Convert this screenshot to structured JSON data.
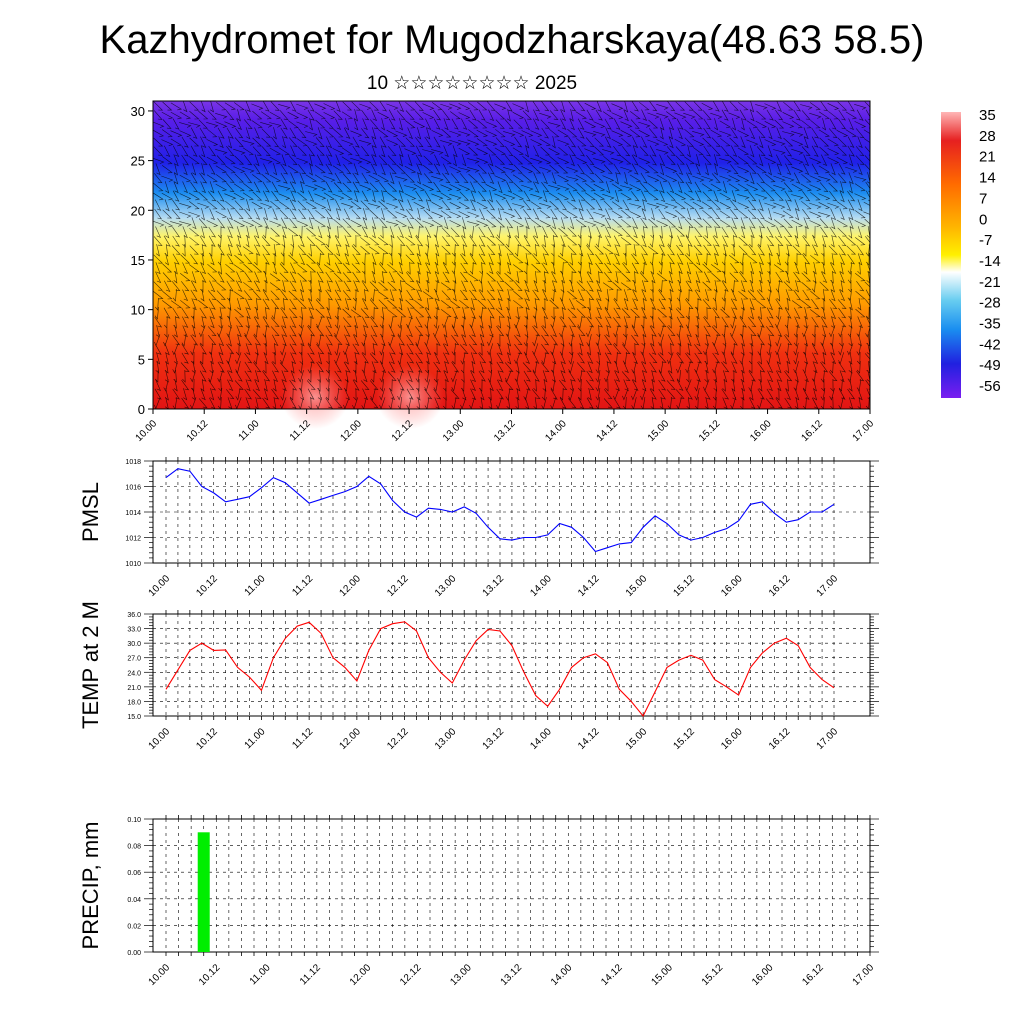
{
  "header": {
    "title": "Kazhydromet for Mugodzharskaya(48.63 58.5)",
    "subtitle": "10 ☆☆☆☆☆☆☆☆ 2025"
  },
  "chart_data": [
    {
      "type": "heatmap",
      "name": "upper-profile",
      "ylim": [
        0,
        31
      ],
      "yticks": [
        "0",
        "5",
        "10",
        "15",
        "20",
        "25",
        "30"
      ],
      "xticks": [
        "10.00",
        "10.12",
        "11.00",
        "11.12",
        "12.00",
        "12.12",
        "13.00",
        "13.12",
        "14.00",
        "14.12",
        "15.00",
        "15.12",
        "16.00",
        "16.12",
        "17.00"
      ],
      "colorbar": {
        "labels": [
          "35",
          "28",
          "21",
          "14",
          "7",
          "0",
          "-7",
          "-14",
          "-21",
          "-28",
          "-35",
          "-42",
          "-49",
          "-56"
        ],
        "range": [
          -60,
          36
        ]
      },
      "overlay": "wind-barbs",
      "colors": {
        "cold": "#5a1ee8",
        "mid": "#fff000",
        "hot": "#e21414"
      }
    },
    {
      "type": "line",
      "ylabel": "PMSL",
      "ylim": [
        1010,
        1018
      ],
      "yticks": [
        "1010",
        "1012",
        "1014",
        "1016",
        "1018"
      ],
      "xticks": [
        "10.00",
        "10.12",
        "11.00",
        "11.12",
        "12.00",
        "12.12",
        "13.00",
        "13.12",
        "14.00",
        "14.12",
        "15.00",
        "15.12",
        "16.00",
        "16.12",
        "17.00"
      ],
      "line_color": "#0000ff",
      "values": [
        1016.7,
        1017.4,
        1017.2,
        1016.0,
        1015.5,
        1014.8,
        1015.0,
        1015.2,
        1015.9,
        1016.7,
        1016.3,
        1015.5,
        1014.7,
        1015.0,
        1015.3,
        1015.6,
        1016.0,
        1016.8,
        1016.2,
        1014.9,
        1014.0,
        1013.6,
        1014.3,
        1014.2,
        1014.0,
        1014.4,
        1013.9,
        1012.8,
        1011.9,
        1011.8,
        1012.0,
        1012.0,
        1012.2,
        1013.1,
        1012.8,
        1012.0,
        1010.9,
        1011.2,
        1011.5,
        1011.6,
        1012.8,
        1013.7,
        1013.1,
        1012.2,
        1011.8,
        1012.0,
        1012.4,
        1012.7,
        1013.3,
        1014.6,
        1014.8,
        1013.9,
        1013.2,
        1013.4,
        1014.0,
        1014.0,
        1014.6
      ]
    },
    {
      "type": "line",
      "ylabel": "TEMP at 2 M",
      "ylim": [
        15,
        36
      ],
      "yticks": [
        "15.0",
        "18.0",
        "21.0",
        "24.0",
        "27.0",
        "30.0",
        "33.0",
        "36.0"
      ],
      "xticks": [
        "10.00",
        "10.12",
        "11.00",
        "11.12",
        "12.00",
        "12.12",
        "13.00",
        "13.12",
        "14.00",
        "14.12",
        "15.00",
        "15.12",
        "16.00",
        "16.12",
        "17.00"
      ],
      "line_color": "#ff0000",
      "values": [
        20.5,
        24.5,
        28.5,
        30.0,
        28.5,
        28.6,
        25.0,
        23.0,
        20.3,
        27.0,
        31.0,
        33.5,
        34.3,
        32.0,
        27.0,
        25.0,
        22.2,
        28.5,
        33.0,
        34.0,
        34.4,
        32.5,
        27.0,
        24.0,
        21.8,
        26.5,
        30.5,
        32.8,
        32.5,
        29.5,
        24.0,
        19.2,
        17.0,
        20.5,
        25.0,
        27.0,
        27.8,
        26.0,
        20.5,
        18.0,
        15.0,
        20.0,
        25.0,
        26.5,
        27.5,
        26.5,
        22.5,
        21.0,
        19.3,
        25.0,
        28.0,
        30.0,
        31.0,
        29.5,
        25.0,
        22.5,
        20.8
      ]
    },
    {
      "type": "bar",
      "ylabel": "PRECIP, mm",
      "ylim": [
        0,
        0.1
      ],
      "yticks": [
        "0.00",
        "0.02",
        "0.04",
        "0.06",
        "0.08",
        "0.10"
      ],
      "xticks": [
        "10.00",
        "10.12",
        "11.00",
        "11.12",
        "12.00",
        "12.12",
        "13.00",
        "13.12",
        "14.00",
        "14.12",
        "15.00",
        "15.12",
        "16.00",
        "16.12",
        "17.00"
      ],
      "bar_color": "#00ee00",
      "bars": [
        {
          "x": "10.09",
          "value": 0.09
        }
      ]
    }
  ]
}
